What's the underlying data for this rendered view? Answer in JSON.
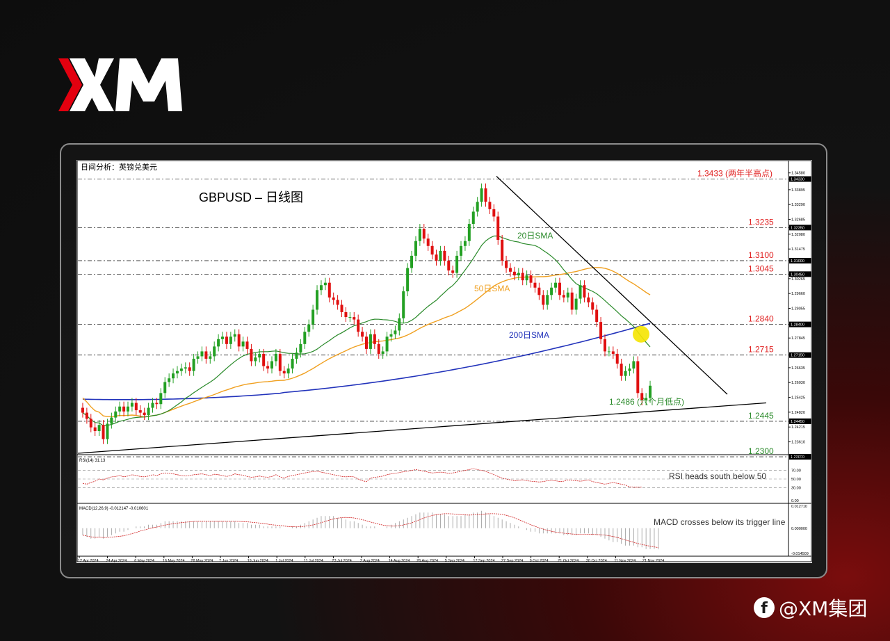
{
  "brand": {
    "logo_text": "XM",
    "handle": "@XM集团",
    "social_icon": "facebook-icon",
    "accent": "#e3000f"
  },
  "chart_data": {
    "type": "candlestick",
    "header": "日间分析：英镑兑美元",
    "title": "GBPUSD – 日线图",
    "ylim": [
      1.232,
      1.346
    ],
    "y_ticks": [
      "1.34580",
      "1.34330",
      "1.33895",
      "1.33290",
      "1.32685",
      "1.32350",
      "1.32080",
      "1.31475",
      "1.31000",
      "1.30450",
      "1.30265",
      "1.29660",
      "1.29055",
      "1.28400",
      "1.27845",
      "1.27150",
      "1.26635",
      "1.26030",
      "1.25425",
      "1.24820",
      "1.24450",
      "1.24215",
      "1.23610",
      "1.23000"
    ],
    "x_ticks": [
      "12 Apr 2024",
      "24 Apr 2024",
      "6 May 2024",
      "16 May 2024",
      "28 May 2024",
      "7 Jun 2024",
      "19 Jun 2024",
      "1 Jul 2024",
      "11 Jul 2024",
      "23 Jul 2024",
      "2 Aug 2024",
      "14 Aug 2024",
      "26 Aug 2024",
      "5 Sep 2024",
      "17 Sep 2024",
      "27 Sep 2024",
      "9 Oct 2024",
      "21 Oct 2024",
      "30 Oct 2024",
      "11 Nov 2024",
      "21 Nov 2024"
    ],
    "close": [
      1.248,
      1.2455,
      1.242,
      1.2405,
      1.243,
      1.2372,
      1.2435,
      1.246,
      1.2485,
      1.2505,
      1.2485,
      1.2505,
      1.252,
      1.249,
      1.248,
      1.247,
      1.25,
      1.252,
      1.2515,
      1.256,
      1.2605,
      1.262,
      1.264,
      1.265,
      1.266,
      1.2665,
      1.265,
      1.27,
      1.271,
      1.273,
      1.27,
      1.271,
      1.275,
      1.278,
      1.279,
      1.276,
      1.279,
      1.28,
      1.275,
      1.277,
      1.274,
      1.269,
      1.2705,
      1.272,
      1.267,
      1.266,
      1.269,
      1.272,
      1.265,
      1.264,
      1.266,
      1.27,
      1.2725,
      1.276,
      1.281,
      1.284,
      1.29,
      1.298,
      1.3,
      1.301,
      1.295,
      1.294,
      1.292,
      1.289,
      1.287,
      1.287,
      1.286,
      1.281,
      1.279,
      1.274,
      1.28,
      1.276,
      1.272,
      1.273,
      1.279,
      1.28,
      1.2815,
      1.2865,
      1.2975,
      1.307,
      1.312,
      1.318,
      1.323,
      1.319,
      1.316,
      1.3125,
      1.31,
      1.314,
      1.31,
      1.306,
      1.305,
      1.312,
      1.316,
      1.318,
      1.325,
      1.33,
      1.334,
      1.3395,
      1.334,
      1.331,
      1.328,
      1.3185,
      1.31,
      1.307,
      1.3055,
      1.304,
      1.305,
      1.302,
      1.304,
      1.301,
      1.299,
      1.296,
      1.292,
      1.296,
      1.299,
      1.301,
      1.296,
      1.295,
      1.297,
      1.29,
      1.2945,
      1.3,
      1.295,
      1.293,
      1.29,
      1.285,
      1.278,
      1.273,
      1.273,
      1.272,
      1.268,
      1.263,
      1.265,
      1.266,
      1.269,
      1.256,
      1.253,
      1.254,
      1.259
    ]
  },
  "smas": [
    {
      "label": "20日SMA",
      "color": "#2a8a2a"
    },
    {
      "label": "50日SMA",
      "color": "#f0a020"
    },
    {
      "label": "200日SMA",
      "color": "#2233bb"
    }
  ],
  "levels": [
    {
      "value": 1.3433,
      "label": "1.3433 (两年半高点)",
      "color": "#e02020"
    },
    {
      "value": 1.3235,
      "label": "1.3235",
      "color": "#e02020"
    },
    {
      "value": 1.31,
      "label": "1.3100",
      "color": "#e02020"
    },
    {
      "value": 1.3045,
      "label": "1.3045",
      "color": "#e02020"
    },
    {
      "value": 1.284,
      "label": "1.2840",
      "color": "#e02020"
    },
    {
      "value": 1.2715,
      "label": "1.2715",
      "color": "#e02020"
    },
    {
      "value": 1.2445,
      "label": "1.2445",
      "color": "#2a8a2a"
    },
    {
      "value": 1.23,
      "label": "1.2300",
      "color": "#2a8a2a"
    }
  ],
  "low_annotation": {
    "value": 1.2486,
    "label": "1.2486 (六个月低点)",
    "color": "#2a8a2a"
  },
  "rsi": {
    "header": "RSI(14) 31.13",
    "annotation": "RSI heads south below 50",
    "ticks": [
      "100.00",
      "70.00",
      "50.00",
      "30.00",
      "0.00"
    ],
    "values": [
      40,
      38,
      42,
      45,
      50,
      48,
      52,
      55,
      56,
      58,
      55,
      57,
      60,
      58,
      56,
      55,
      57,
      60,
      58,
      62,
      64,
      63,
      62,
      60,
      58,
      57,
      58,
      60,
      61,
      62,
      60,
      58,
      61,
      60,
      58,
      56,
      58,
      62,
      60,
      59,
      56,
      54,
      55,
      57,
      55,
      54,
      56,
      60,
      55,
      52,
      56,
      58,
      60,
      62,
      64,
      66,
      67,
      68,
      66,
      64,
      62,
      60,
      58,
      56,
      55,
      56,
      55,
      50,
      46,
      44,
      52,
      54,
      55,
      57,
      60,
      62,
      63,
      65,
      67,
      68,
      70,
      72,
      70,
      68,
      66,
      64,
      65,
      66,
      65,
      63,
      64,
      66,
      68,
      70,
      72,
      74,
      72,
      70,
      68,
      64,
      60,
      56,
      52,
      50,
      48,
      46,
      47,
      48,
      46,
      45,
      44,
      43,
      44,
      46,
      47,
      46,
      44,
      45,
      48,
      47,
      46,
      45,
      46,
      48,
      44,
      42,
      40,
      38,
      40,
      42,
      40,
      38,
      36,
      32,
      31,
      31,
      31.13
    ]
  },
  "macd": {
    "header": "MACD(12,26,9) -0.012147 -0.010601",
    "annotation": "MACD crosses below its trigger line",
    "ticks": [
      "0.012710",
      "0.000000",
      "-0.014509"
    ],
    "hist": [
      -0.004,
      -0.005,
      -0.006,
      -0.006,
      -0.005,
      -0.006,
      -0.005,
      -0.004,
      -0.003,
      -0.002,
      -0.002,
      -0.001,
      0.0,
      0.001,
      0.001,
      0.001,
      0.002,
      0.002,
      0.002,
      0.003,
      0.004,
      0.004,
      0.004,
      0.004,
      0.004,
      0.004,
      0.004,
      0.004,
      0.004,
      0.004,
      0.004,
      0.004,
      0.004,
      0.004,
      0.004,
      0.004,
      0.004,
      0.004,
      0.003,
      0.003,
      0.003,
      0.002,
      0.002,
      0.002,
      0.001,
      0.001,
      0.001,
      0.001,
      0.001,
      0.0,
      0.0,
      0.001,
      0.001,
      0.002,
      0.003,
      0.004,
      0.005,
      0.006,
      0.007,
      0.007,
      0.007,
      0.007,
      0.006,
      0.006,
      0.005,
      0.004,
      0.004,
      0.003,
      0.002,
      0.001,
      0.001,
      0.001,
      0.0,
      0.0,
      0.001,
      0.002,
      0.003,
      0.004,
      0.005,
      0.006,
      0.007,
      0.008,
      0.009,
      0.009,
      0.009,
      0.009,
      0.008,
      0.008,
      0.008,
      0.007,
      0.007,
      0.007,
      0.007,
      0.008,
      0.008,
      0.009,
      0.009,
      0.01,
      0.009,
      0.008,
      0.007,
      0.006,
      0.005,
      0.004,
      0.003,
      0.002,
      0.001,
      0.0,
      -0.001,
      -0.002,
      -0.002,
      -0.003,
      -0.003,
      -0.003,
      -0.003,
      -0.003,
      -0.003,
      -0.004,
      -0.004,
      -0.004,
      -0.004,
      -0.003,
      -0.003,
      -0.003,
      -0.004,
      -0.004,
      -0.005,
      -0.006,
      -0.007,
      -0.008,
      -0.008,
      -0.009,
      -0.01,
      -0.01,
      -0.01,
      -0.011,
      -0.011,
      -0.012,
      -0.012,
      -0.012,
      -0.012147
    ],
    "signal_note": "trigger line"
  }
}
